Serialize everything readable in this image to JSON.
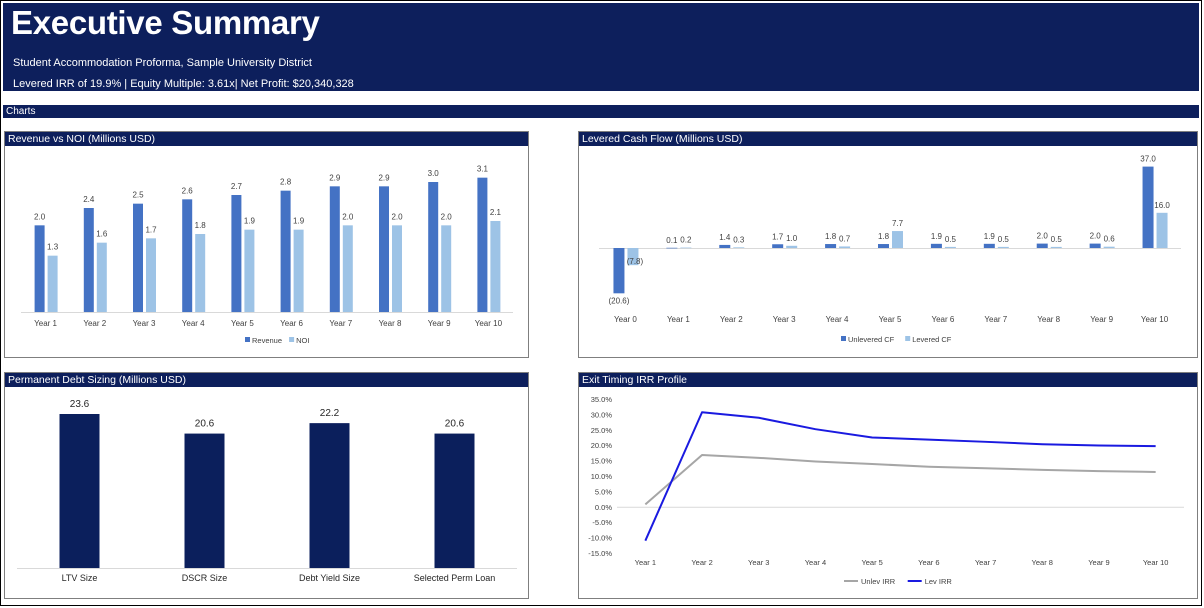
{
  "header": {
    "title": "Executive Summary",
    "subtitle": "Student Accommodation Proforma, Sample University District",
    "metrics": "Levered IRR of 19.9% | Equity Multiple: 3.61x| Net Profit: $20,340,328",
    "section_label": "Charts"
  },
  "colors": {
    "navy": "#0d1f5c",
    "bar_dark": "#4472c4",
    "bar_light": "#9dc3e6",
    "debt_bar": "#0b1f5c",
    "unlev_line": "#a6a6a6",
    "lev_line": "#1a1ae0"
  },
  "panels": {
    "revenue_noi": {
      "title": "Revenue vs NOI (Millions USD)"
    },
    "levered_cf": {
      "title": "Levered Cash Flow (Millions USD)"
    },
    "debt_sizing": {
      "title": "Permanent Debt Sizing (Millions USD)"
    },
    "exit_irr": {
      "title": "Exit Timing IRR Profile"
    }
  },
  "chart_data": [
    {
      "id": "revenue_noi",
      "type": "bar",
      "title": "Revenue vs NOI (Millions USD)",
      "categories": [
        "Year 1",
        "Year 2",
        "Year 3",
        "Year 4",
        "Year 5",
        "Year 6",
        "Year 7",
        "Year 8",
        "Year 9",
        "Year 10"
      ],
      "series": [
        {
          "name": "Revenue",
          "values": [
            2.0,
            2.4,
            2.5,
            2.6,
            2.7,
            2.8,
            2.9,
            2.9,
            3.0,
            3.1
          ],
          "labels": [
            "2.0",
            "2.4",
            "2.5",
            "2.6",
            "2.7",
            "2.8",
            "2.9",
            "2.9",
            "3.0",
            "3.1"
          ]
        },
        {
          "name": "NOI",
          "values": [
            1.3,
            1.6,
            1.7,
            1.8,
            1.9,
            1.9,
            2.0,
            2.0,
            2.0,
            2.1
          ],
          "labels": [
            "1.3",
            "1.6",
            "1.7",
            "1.8",
            "1.9",
            "1.9",
            "2.0",
            "2.0",
            "2.0",
            "2.1"
          ]
        }
      ],
      "ylim": [
        0,
        3.6
      ],
      "grid": false,
      "legend": "bottom"
    },
    {
      "id": "levered_cf",
      "type": "bar",
      "title": "Levered Cash Flow (Millions USD)",
      "categories": [
        "Year 0",
        "Year 1",
        "Year 2",
        "Year 3",
        "Year 4",
        "Year 5",
        "Year 6",
        "Year 7",
        "Year 8",
        "Year 9",
        "Year 10"
      ],
      "series": [
        {
          "name": "Unlevered CF",
          "values": [
            -20.6,
            0.1,
            1.4,
            1.7,
            1.8,
            1.8,
            1.9,
            1.9,
            2.0,
            2.0,
            37.0
          ],
          "labels": [
            "(20.6)",
            "0.1",
            "1.4",
            "1.7",
            "1.8",
            "1.8",
            "1.9",
            "1.9",
            "2.0",
            "2.0",
            "37.0"
          ]
        },
        {
          "name": "Levered CF",
          "values": [
            -7.8,
            0.2,
            0.3,
            1.0,
            0.7,
            7.7,
            0.5,
            0.5,
            0.5,
            0.6,
            16.0
          ],
          "labels": [
            "(7.8)",
            "0.2",
            "0.3",
            "1.0",
            "0.7",
            "7.7",
            "0.5",
            "0.5",
            "0.5",
            "0.6",
            "16.0"
          ]
        }
      ],
      "ylim": [
        -25,
        40
      ],
      "grid": false,
      "legend": "bottom"
    },
    {
      "id": "debt_sizing",
      "type": "bar",
      "title": "Permanent Debt Sizing (Millions USD)",
      "categories": [
        "LTV Size",
        "DSCR Size",
        "Debt Yield Size",
        "Selected Perm Loan"
      ],
      "values": [
        23.6,
        20.6,
        22.2,
        20.6
      ],
      "labels": [
        "23.6",
        "20.6",
        "22.2",
        "20.6"
      ],
      "ylim": [
        0,
        25
      ],
      "grid": false,
      "legend": "none"
    },
    {
      "id": "exit_irr",
      "type": "line",
      "title": "Exit Timing IRR Profile",
      "categories": [
        "Year 1",
        "Year 2",
        "Year 3",
        "Year 4",
        "Year 5",
        "Year 6",
        "Year 7",
        "Year 8",
        "Year 9",
        "Year 10"
      ],
      "series": [
        {
          "name": "Unlev IRR",
          "values": [
            0.8,
            16.8,
            15.9,
            14.7,
            13.9,
            13.0,
            12.5,
            12.0,
            11.6,
            11.3
          ]
        },
        {
          "name": "Lev IRR",
          "values": [
            -11.0,
            30.7,
            28.9,
            25.2,
            22.5,
            21.8,
            21.1,
            20.3,
            19.9,
            19.7
          ]
        }
      ],
      "yticks": [
        "35.0%",
        "30.0%",
        "25.0%",
        "20.0%",
        "15.0%",
        "10.0%",
        "5.0%",
        "0.0%",
        "-5.0%",
        "-10.0%",
        "-15.0%"
      ],
      "ylim": [
        -15,
        35
      ],
      "grid": false,
      "legend": "bottom"
    }
  ]
}
